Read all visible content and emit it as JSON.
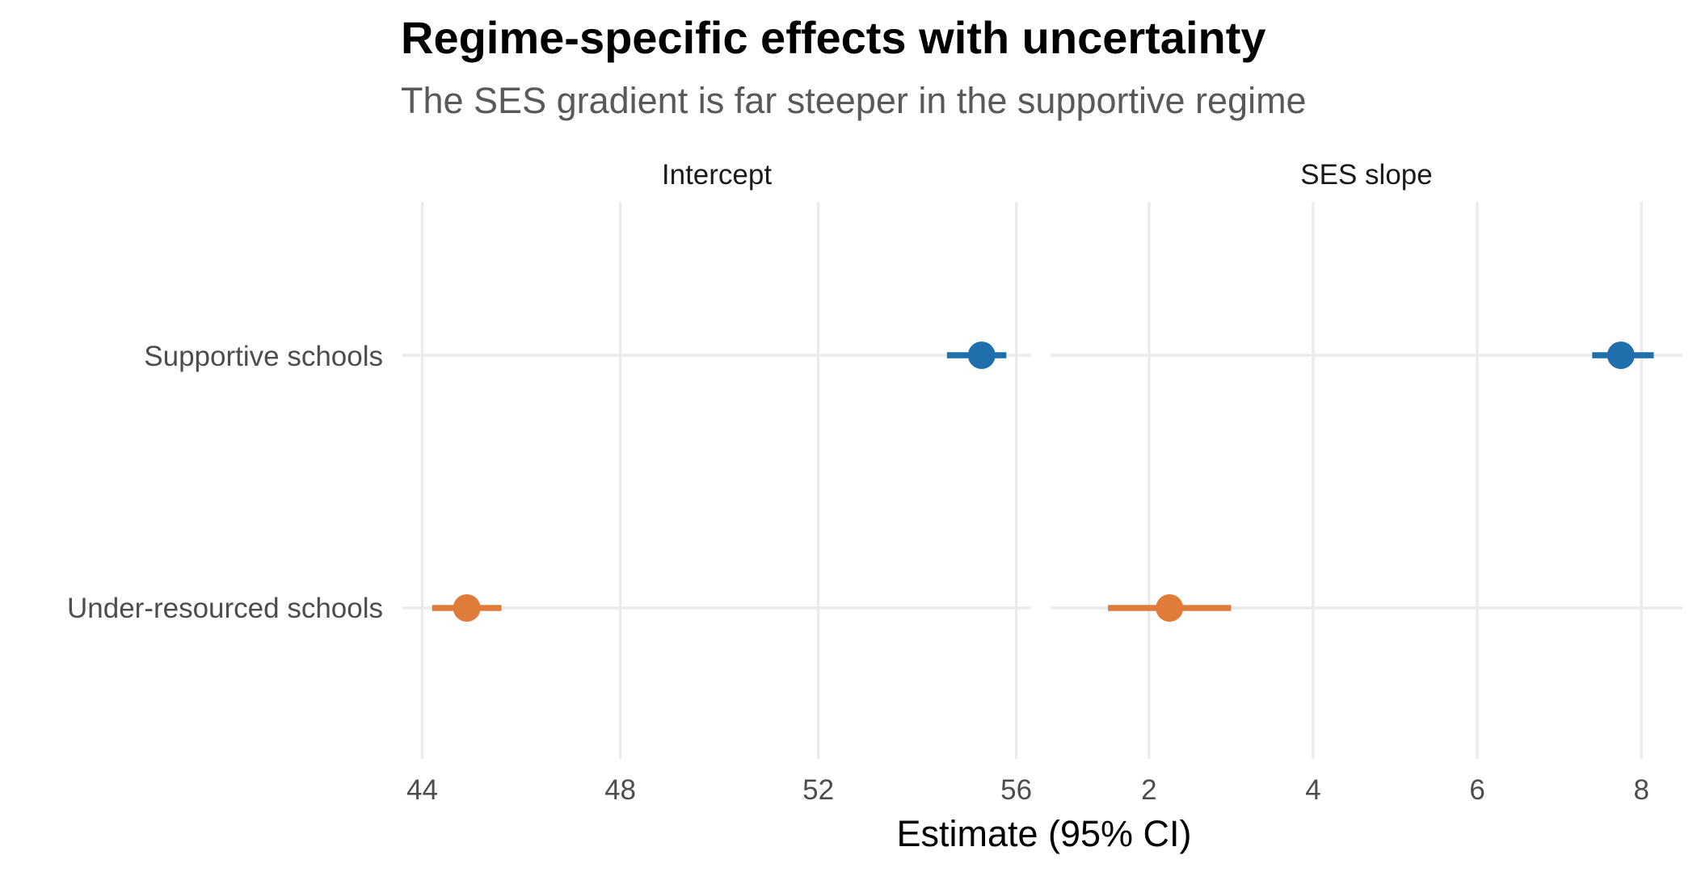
{
  "chart_data": {
    "type": "dot-and-whisker",
    "title": "Regime-specific effects with uncertainty",
    "subtitle": "The SES gradient is far steeper in the supportive regime",
    "xlabel": "Estimate (95% CI)",
    "categories": [
      "Supportive schools",
      "Under-resourced schools"
    ],
    "colors": {
      "Supportive schools": "#1f6fab",
      "Under-resourced schools": "#e07b39"
    },
    "grid": true,
    "panels": [
      {
        "name": "Intercept",
        "xlim": [
          43.6,
          56.3
        ],
        "ticks": [
          44,
          48,
          52,
          56
        ],
        "tick_labels": [
          "44",
          "48",
          "52",
          "56"
        ],
        "points": [
          {
            "category": "Supportive schools",
            "estimate": 55.3,
            "lower": 54.6,
            "upper": 55.8
          },
          {
            "category": "Under-resourced schools",
            "estimate": 44.9,
            "lower": 44.2,
            "upper": 45.6
          }
        ]
      },
      {
        "name": "SES slope",
        "xlim": [
          0.8,
          8.5
        ],
        "ticks": [
          2,
          4,
          6,
          8
        ],
        "tick_labels": [
          "2",
          "4",
          "6",
          "8"
        ],
        "points": [
          {
            "category": "Supportive schools",
            "estimate": 7.75,
            "lower": 7.4,
            "upper": 8.15
          },
          {
            "category": "Under-resourced schools",
            "estimate": 2.25,
            "lower": 1.5,
            "upper": 3.0
          }
        ]
      }
    ]
  }
}
